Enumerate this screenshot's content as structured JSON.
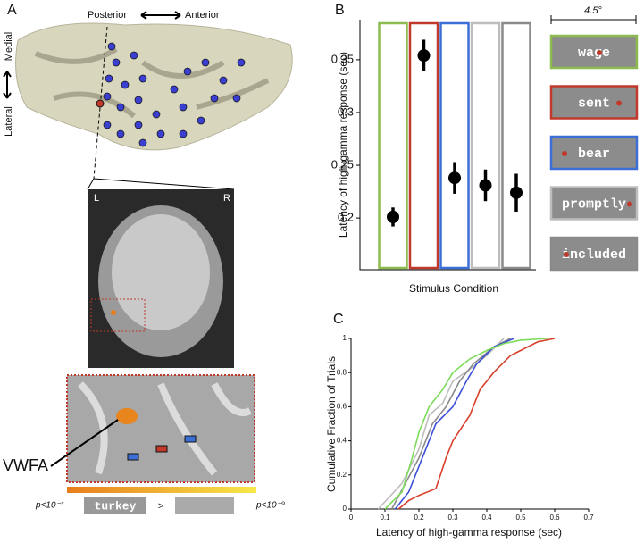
{
  "panel_a": {
    "label": "A",
    "posterior": "Posterior",
    "anterior": "Anterior",
    "medial": "Medial",
    "lateral": "Lateral",
    "left": "L",
    "right": "R",
    "region": "VWFA",
    "p_low": "p<10⁻³",
    "p_high": "p<10⁻⁹",
    "word": "turkey",
    "greater": ">"
  },
  "chart_data": [
    {
      "type": "errorbar",
      "panel": "B",
      "y_label": "Latency of high-gamma response (sec)",
      "x_label": "Stimulus Condition",
      "scale_label": "4.5°",
      "ylim": [
        0.151,
        0.388
      ],
      "yticks": [
        0.2,
        0.25,
        0.3,
        0.35
      ],
      "series": [
        {
          "name": "wage",
          "color": "#8dbb4f",
          "values": [
            0.201
          ],
          "errors": [
            0.009
          ]
        },
        {
          "name": "sent",
          "color": "#c0392b",
          "values": [
            0.354
          ],
          "errors": [
            0.015
          ]
        },
        {
          "name": "bear",
          "color": "#3c6fd6",
          "values": [
            0.238
          ],
          "errors": [
            0.015
          ]
        },
        {
          "name": "promptly",
          "color": "#bdbdbd",
          "values": [
            0.231
          ],
          "errors": [
            0.015
          ]
        },
        {
          "name": "included",
          "color": "#8a8a8a",
          "values": [
            0.224
          ],
          "errors": [
            0.018
          ]
        }
      ]
    },
    {
      "type": "line",
      "panel": "C",
      "x_label": "Latency of high-gamma response (sec)",
      "y_label": "Cumulative Fraction of Trials",
      "xlim": [
        0,
        0.7
      ],
      "xticks": [
        0,
        0.1,
        0.2,
        0.3,
        0.4,
        0.5,
        0.6,
        0.7
      ],
      "ylim": [
        0,
        1
      ],
      "yticks": [
        0,
        0.2,
        0.4,
        0.6,
        0.8,
        1
      ],
      "series": [
        {
          "color": "#bdbdbd",
          "x": [
            0.08,
            0.15,
            0.2,
            0.23,
            0.27,
            0.3,
            0.35,
            0.4,
            0.45
          ],
          "values": [
            0,
            0.15,
            0.35,
            0.55,
            0.62,
            0.75,
            0.82,
            0.9,
            1
          ]
        },
        {
          "color": "#8a8a8a",
          "x": [
            0.12,
            0.16,
            0.2,
            0.24,
            0.28,
            0.32,
            0.36,
            0.42,
            0.47
          ],
          "values": [
            0,
            0.15,
            0.3,
            0.5,
            0.6,
            0.75,
            0.85,
            0.95,
            1
          ]
        },
        {
          "color": "#3c4fd6",
          "x": [
            0.13,
            0.17,
            0.21,
            0.25,
            0.3,
            0.34,
            0.37,
            0.42,
            0.48
          ],
          "values": [
            0,
            0.1,
            0.3,
            0.5,
            0.6,
            0.75,
            0.85,
            0.95,
            1
          ]
        },
        {
          "color": "#7edc5a",
          "x": [
            0.1,
            0.15,
            0.18,
            0.2,
            0.23,
            0.27,
            0.3,
            0.35,
            0.4,
            0.45,
            0.5,
            0.58
          ],
          "values": [
            0,
            0.1,
            0.3,
            0.45,
            0.6,
            0.7,
            0.8,
            0.88,
            0.93,
            0.97,
            0.99,
            1
          ]
        },
        {
          "color": "#d8402c",
          "x": [
            0.14,
            0.17,
            0.2,
            0.25,
            0.28,
            0.3,
            0.35,
            0.38,
            0.42,
            0.47,
            0.5,
            0.55,
            0.6
          ],
          "values": [
            0,
            0.05,
            0.08,
            0.12,
            0.3,
            0.4,
            0.55,
            0.7,
            0.8,
            0.9,
            0.93,
            0.98,
            1
          ]
        }
      ]
    }
  ]
}
